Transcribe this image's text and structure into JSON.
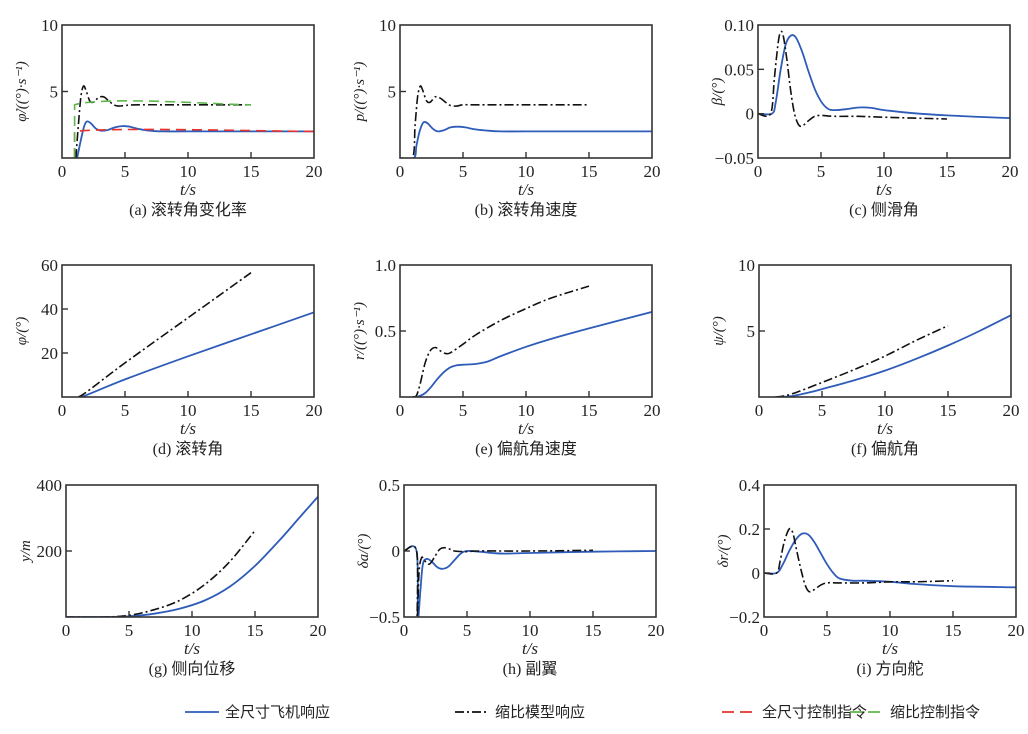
{
  "legend": [
    {
      "key": "full",
      "label": "全尺寸飞机响应",
      "color": "#2e5cb8",
      "dash": "solid"
    },
    {
      "key": "scale",
      "label": "缩比模型响应",
      "color": "#111111",
      "dash": "dashdot"
    },
    {
      "key": "full_cmd",
      "label": "全尺寸控制指令",
      "color": "#e8322d",
      "dash": "dashed"
    },
    {
      "key": "scale_cmd",
      "label": "缩比控制指令",
      "color": "#5cb84a",
      "dash": "dashed"
    }
  ],
  "chart_data": [
    {
      "id": "a",
      "type": "line",
      "caption": "(a) 滚转角变化率",
      "xlabel": "t/s",
      "ylabel": "φ̇/((°)·s⁻¹)",
      "xlim": [
        0,
        20
      ],
      "ylim": [
        0,
        10
      ],
      "xticks": [
        "0",
        "5",
        "10",
        "15",
        "20"
      ],
      "xtick_values": [
        0,
        5,
        10,
        15,
        20
      ],
      "yticks": [
        "10",
        "5"
      ],
      "ytick_values": [
        10,
        5
      ],
      "series": [
        {
          "name": "全尺寸飞机响应",
          "key": "full",
          "x": [
            1.2,
            1.4,
            1.6,
            1.8,
            2.0,
            2.3,
            2.7,
            3.1,
            3.6,
            4.2,
            4.8,
            5.4,
            6.0,
            7.0,
            8.0,
            10,
            15,
            20
          ],
          "y": [
            0,
            0.9,
            1.8,
            2.5,
            2.75,
            2.6,
            2.2,
            2.05,
            2.1,
            2.3,
            2.4,
            2.35,
            2.2,
            2.05,
            2.0,
            2.0,
            2.0,
            2.0
          ]
        },
        {
          "name": "缩比模型响应",
          "key": "scale",
          "x": [
            1.1,
            1.3,
            1.5,
            1.7,
            1.9,
            2.2,
            2.5,
            2.9,
            3.3,
            3.7,
            4.1,
            4.5,
            5.0,
            6.0,
            10,
            15
          ],
          "y": [
            0,
            2.5,
            4.6,
            5.4,
            5.1,
            4.3,
            4.2,
            4.55,
            4.6,
            4.3,
            4.0,
            3.9,
            3.95,
            4.0,
            4.0,
            4.0
          ]
        },
        {
          "name": "全尺寸控制指令",
          "key": "full_cmd",
          "x": [
            1.0,
            1.0,
            20
          ],
          "y": [
            0,
            2.0,
            2.0
          ]
        },
        {
          "name": "缩比控制指令",
          "key": "scale_cmd",
          "x": [
            1.0,
            1.0,
            15
          ],
          "y": [
            0,
            4.0,
            4.0
          ]
        }
      ]
    },
    {
      "id": "b",
      "type": "line",
      "caption": "(b) 滚转角速度",
      "xlabel": "t/s",
      "ylabel": "p/((°)·s⁻¹)",
      "xlim": [
        0,
        20
      ],
      "ylim": [
        0,
        10
      ],
      "xticks": [
        "0",
        "5",
        "10",
        "15",
        "20"
      ],
      "xtick_values": [
        0,
        5,
        10,
        15,
        20
      ],
      "yticks": [
        "10",
        "5"
      ],
      "ytick_values": [
        10,
        5
      ],
      "series": [
        {
          "name": "全尺寸飞机响应",
          "key": "full",
          "x": [
            0,
            1.1,
            1.3,
            1.5,
            1.7,
            1.9,
            2.2,
            2.6,
            3.0,
            3.5,
            4.0,
            4.6,
            5.2,
            6.0,
            7.0,
            8.0,
            10,
            15,
            20
          ],
          "y": [
            0,
            0,
            0.9,
            1.8,
            2.4,
            2.7,
            2.6,
            2.2,
            2.0,
            2.1,
            2.3,
            2.35,
            2.3,
            2.15,
            2.05,
            2.0,
            2.0,
            2.0,
            2.0
          ]
        },
        {
          "name": "缩比模型响应",
          "key": "scale",
          "x": [
            0,
            1.0,
            1.2,
            1.4,
            1.6,
            1.8,
            2.1,
            2.4,
            2.8,
            3.2,
            3.6,
            4.0,
            4.5,
            5.0,
            6.0,
            10,
            15
          ],
          "y": [
            0,
            0,
            2.5,
            4.6,
            5.4,
            5.1,
            4.3,
            4.2,
            4.6,
            4.5,
            4.2,
            3.95,
            3.9,
            4.0,
            4.0,
            4.0,
            4.0
          ]
        }
      ]
    },
    {
      "id": "c",
      "type": "line",
      "caption": "(c) 侧滑角",
      "xlabel": "t/s",
      "ylabel": "β/(°)",
      "xlim": [
        0,
        20
      ],
      "ylim": [
        -0.05,
        0.1
      ],
      "xticks": [
        "0",
        "5",
        "10",
        "15",
        "20"
      ],
      "xtick_values": [
        0,
        5,
        10,
        15,
        20
      ],
      "yticks": [
        "0.10",
        "0.05",
        "0",
        "−0.05"
      ],
      "ytick_values": [
        0.1,
        0.05,
        0,
        -0.05
      ],
      "series": [
        {
          "name": "全尺寸飞机响应",
          "key": "full",
          "x": [
            0,
            1.1,
            1.4,
            1.8,
            2.2,
            2.6,
            3.0,
            3.5,
            4.0,
            4.5,
            5.0,
            5.5,
            6.0,
            7.0,
            8.0,
            9.0,
            10,
            12,
            15,
            20
          ],
          "y": [
            0,
            0,
            0.012,
            0.05,
            0.078,
            0.088,
            0.086,
            0.07,
            0.048,
            0.028,
            0.014,
            0.006,
            0.004,
            0.005,
            0.007,
            0.0065,
            0.004,
            0.001,
            -0.002,
            -0.005
          ]
        },
        {
          "name": "缩比模型响应",
          "key": "scale",
          "x": [
            0,
            1.0,
            1.3,
            1.6,
            1.8,
            2.0,
            2.3,
            2.6,
            2.9,
            3.2,
            3.5,
            4.0,
            4.5,
            5.0,
            6.0,
            8.0,
            10,
            15
          ],
          "y": [
            0,
            0,
            0.04,
            0.08,
            0.092,
            0.088,
            0.06,
            0.025,
            0.0,
            -0.012,
            -0.014,
            -0.008,
            -0.003,
            -0.002,
            -0.003,
            -0.003,
            -0.004,
            -0.006
          ]
        }
      ]
    },
    {
      "id": "d",
      "type": "line",
      "caption": "(d) 滚转角",
      "xlabel": "t/s",
      "ylabel": "φ/(°)",
      "xlim": [
        0,
        20
      ],
      "ylim": [
        0,
        60
      ],
      "xticks": [
        "0",
        "5",
        "10",
        "15",
        "20"
      ],
      "xtick_values": [
        0,
        5,
        10,
        15,
        20
      ],
      "yticks": [
        "60",
        "40",
        "20"
      ],
      "ytick_values": [
        60,
        40,
        20
      ],
      "series": [
        {
          "name": "全尺寸飞机响应",
          "key": "full",
          "x": [
            1.4,
            2.0,
            5,
            10,
            15,
            20
          ],
          "y": [
            0,
            1.0,
            8.0,
            18.5,
            28.5,
            38.5
          ]
        },
        {
          "name": "缩比模型响应",
          "key": "scale",
          "x": [
            1.3,
            2.0,
            5,
            10,
            15
          ],
          "y": [
            0,
            2.5,
            15.5,
            36.0,
            56.5
          ]
        }
      ]
    },
    {
      "id": "e",
      "type": "line",
      "caption": "(e) 偏航角速度",
      "xlabel": "t/s",
      "ylabel": "r/((°)·s⁻¹)",
      "xlim": [
        0,
        20
      ],
      "ylim": [
        0,
        1.0
      ],
      "xticks": [
        "0",
        "5",
        "10",
        "15",
        "20"
      ],
      "xtick_values": [
        0,
        5,
        10,
        15,
        20
      ],
      "yticks": [
        "1.0",
        "0.5"
      ],
      "ytick_values": [
        1.0,
        0.5
      ],
      "series": [
        {
          "name": "全尺寸飞机响应",
          "key": "full",
          "x": [
            1.0,
            1.5,
            2.0,
            2.5,
            3.0,
            3.5,
            4.0,
            4.5,
            5.0,
            6.0,
            7.0,
            8.0,
            10,
            12,
            15,
            20
          ],
          "y": [
            0,
            0.005,
            0.03,
            0.08,
            0.14,
            0.19,
            0.225,
            0.24,
            0.245,
            0.25,
            0.27,
            0.31,
            0.38,
            0.44,
            0.52,
            0.645
          ]
        },
        {
          "name": "缩比模型响应",
          "key": "scale",
          "x": [
            1.0,
            1.3,
            1.6,
            2.0,
            2.4,
            2.8,
            3.2,
            3.6,
            4.0,
            5.0,
            6.0,
            8.0,
            10,
            12,
            15
          ],
          "y": [
            0,
            0.01,
            0.1,
            0.26,
            0.35,
            0.375,
            0.35,
            0.33,
            0.335,
            0.4,
            0.47,
            0.58,
            0.67,
            0.75,
            0.84
          ]
        }
      ]
    },
    {
      "id": "f",
      "type": "line",
      "caption": "(f) 偏航角",
      "xlabel": "t/s",
      "ylabel": "ψ/(°)",
      "xlim": [
        0,
        20
      ],
      "ylim": [
        0,
        10
      ],
      "xticks": [
        "0",
        "5",
        "10",
        "15",
        "20"
      ],
      "xtick_values": [
        0,
        5,
        10,
        15,
        20
      ],
      "yticks": [
        "10",
        "5"
      ],
      "ytick_values": [
        10,
        5
      ],
      "series": [
        {
          "name": "全尺寸飞机响应",
          "key": "full",
          "x": [
            1.5,
            2.5,
            4,
            5,
            7.5,
            10,
            12.5,
            15,
            17.5,
            20
          ],
          "y": [
            0,
            0.05,
            0.35,
            0.6,
            1.25,
            2.0,
            2.9,
            3.9,
            5.0,
            6.2
          ]
        },
        {
          "name": "缩比模型响应",
          "key": "scale",
          "x": [
            1.3,
            2.5,
            5,
            7.5,
            10,
            12.5,
            15
          ],
          "y": [
            0,
            0.2,
            1.1,
            2.05,
            3.1,
            4.3,
            5.4
          ]
        }
      ]
    },
    {
      "id": "g",
      "type": "line",
      "caption": "(g) 侧向位移",
      "xlabel": "t/s",
      "ylabel": "y/m",
      "xlim": [
        0,
        20
      ],
      "ylim": [
        0,
        400
      ],
      "xticks": [
        "0",
        "5",
        "10",
        "15",
        "20"
      ],
      "xtick_values": [
        0,
        5,
        10,
        15,
        20
      ],
      "yticks": [
        "400",
        "200"
      ],
      "ytick_values": [
        400,
        200
      ],
      "series": [
        {
          "name": "全尺寸飞机响应",
          "key": "full",
          "x": [
            0,
            3,
            5,
            7,
            9,
            11,
            13,
            15,
            17,
            18.5,
            20
          ],
          "y": [
            0,
            0,
            2,
            10,
            25,
            50,
            92,
            155,
            235,
            300,
            365
          ]
        },
        {
          "name": "缩比模型响应",
          "key": "scale",
          "x": [
            0,
            3,
            5,
            7,
            9,
            11,
            13,
            15
          ],
          "y": [
            0,
            0,
            5,
            22,
            50,
            98,
            168,
            262
          ]
        }
      ]
    },
    {
      "id": "h",
      "type": "line",
      "caption": "(h) 副翼",
      "xlabel": "t/s",
      "ylabel": "δa/(°)",
      "xlim": [
        0,
        20
      ],
      "ylim": [
        -0.5,
        0.5
      ],
      "xticks": [
        "0",
        "5",
        "10",
        "15",
        "20"
      ],
      "xtick_values": [
        0,
        5,
        10,
        15,
        20
      ],
      "yticks": [
        "0.5",
        "0",
        "−0.5"
      ],
      "ytick_values": [
        0.5,
        0,
        -0.5
      ],
      "series": [
        {
          "name": "全尺寸飞机响应",
          "key": "full",
          "x": [
            0,
            1.0,
            1.1,
            1.3,
            1.5,
            1.8,
            2.2,
            2.6,
            3.0,
            3.5,
            4.0,
            4.5,
            5.0,
            6.0,
            7.0,
            8.0,
            10,
            15,
            20
          ],
          "y": [
            0,
            0,
            -0.5,
            -0.3,
            -0.1,
            -0.06,
            -0.08,
            -0.12,
            -0.135,
            -0.12,
            -0.07,
            -0.02,
            0.0,
            -0.005,
            -0.015,
            -0.02,
            -0.015,
            -0.005,
            0
          ]
        },
        {
          "name": "缩比模型响应",
          "key": "scale",
          "x": [
            0,
            1.0,
            1.05,
            1.2,
            1.4,
            1.6,
            2.0,
            2.4,
            2.8,
            3.2,
            3.6,
            4.0,
            5.0,
            6.0,
            10,
            15
          ],
          "y": [
            0,
            0,
            -0.5,
            -0.15,
            -0.05,
            -0.07,
            -0.1,
            -0.05,
            0.01,
            0.025,
            0.015,
            0.0,
            -0.005,
            0,
            0,
            0.005
          ]
        }
      ]
    },
    {
      "id": "i",
      "type": "line",
      "caption": "(i) 方向舵",
      "xlabel": "t/s",
      "ylabel": "δr/(°)",
      "xlim": [
        0,
        20
      ],
      "ylim": [
        -0.2,
        0.4
      ],
      "xticks": [
        "0",
        "5",
        "10",
        "15",
        "20"
      ],
      "xtick_values": [
        0,
        5,
        10,
        15,
        20
      ],
      "yticks": [
        "0.4",
        "0.2",
        "0",
        "−0.2"
      ],
      "ytick_values": [
        0.4,
        0.2,
        0,
        -0.2
      ],
      "series": [
        {
          "name": "全尺寸飞机响应",
          "key": "full",
          "x": [
            0,
            1.0,
            1.5,
            2.0,
            2.5,
            3.0,
            3.5,
            4.0,
            4.5,
            5.0,
            5.5,
            6.0,
            7.0,
            8.0,
            10,
            12,
            15,
            20
          ],
          "y": [
            0,
            0,
            0.04,
            0.1,
            0.15,
            0.178,
            0.175,
            0.14,
            0.09,
            0.04,
            0.0,
            -0.025,
            -0.035,
            -0.035,
            -0.04,
            -0.05,
            -0.06,
            -0.065
          ]
        },
        {
          "name": "缩比模型响应",
          "key": "scale",
          "x": [
            0,
            1.0,
            1.3,
            1.6,
            2.0,
            2.3,
            2.6,
            3.0,
            3.3,
            3.6,
            4.0,
            4.5,
            5.0,
            6.0,
            8.0,
            10,
            12,
            15
          ],
          "y": [
            0,
            0,
            0.06,
            0.14,
            0.2,
            0.18,
            0.1,
            0.0,
            -0.06,
            -0.085,
            -0.075,
            -0.055,
            -0.045,
            -0.045,
            -0.045,
            -0.04,
            -0.04,
            -0.035
          ]
        }
      ]
    }
  ]
}
